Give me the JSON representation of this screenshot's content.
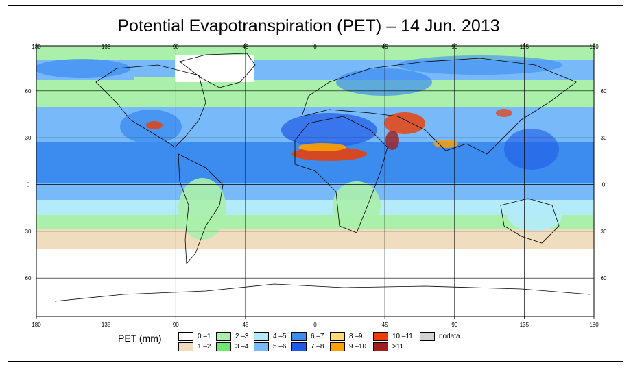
{
  "title": "Potential Evapotranspiration (PET) – 14 Jun. 2013",
  "lon_labels": [
    "180",
    "135",
    "90",
    "45",
    "0",
    "45",
    "90",
    "135",
    "180"
  ],
  "lat_labels": [
    "60",
    "30",
    "0",
    "30",
    "60"
  ],
  "legend": {
    "title": "PET (mm)",
    "items": [
      {
        "label": "0 –1",
        "color": "#ffffff"
      },
      {
        "label": "1 –2",
        "color": "#f0dcbe"
      },
      {
        "label": "2 –3",
        "color": "#aaf0aa"
      },
      {
        "label": "3 –4",
        "color": "#6ee66e"
      },
      {
        "label": "4 –5",
        "color": "#b4ebfa"
      },
      {
        "label": "5 –6",
        "color": "#78b9fa"
      },
      {
        "label": "6 –7",
        "color": "#3c8cf0"
      },
      {
        "label": "7 –8",
        "color": "#1e5ae6"
      },
      {
        "label": "8 –9",
        "color": "#ffdc78"
      },
      {
        "label": "9 –10",
        "color": "#ffa000"
      },
      {
        "label": "10 –11",
        "color": "#f03c00"
      },
      {
        "label": ">11",
        "color": "#a01e1e"
      },
      {
        "label": "nodata",
        "color": "#d2d2d2"
      }
    ]
  }
}
